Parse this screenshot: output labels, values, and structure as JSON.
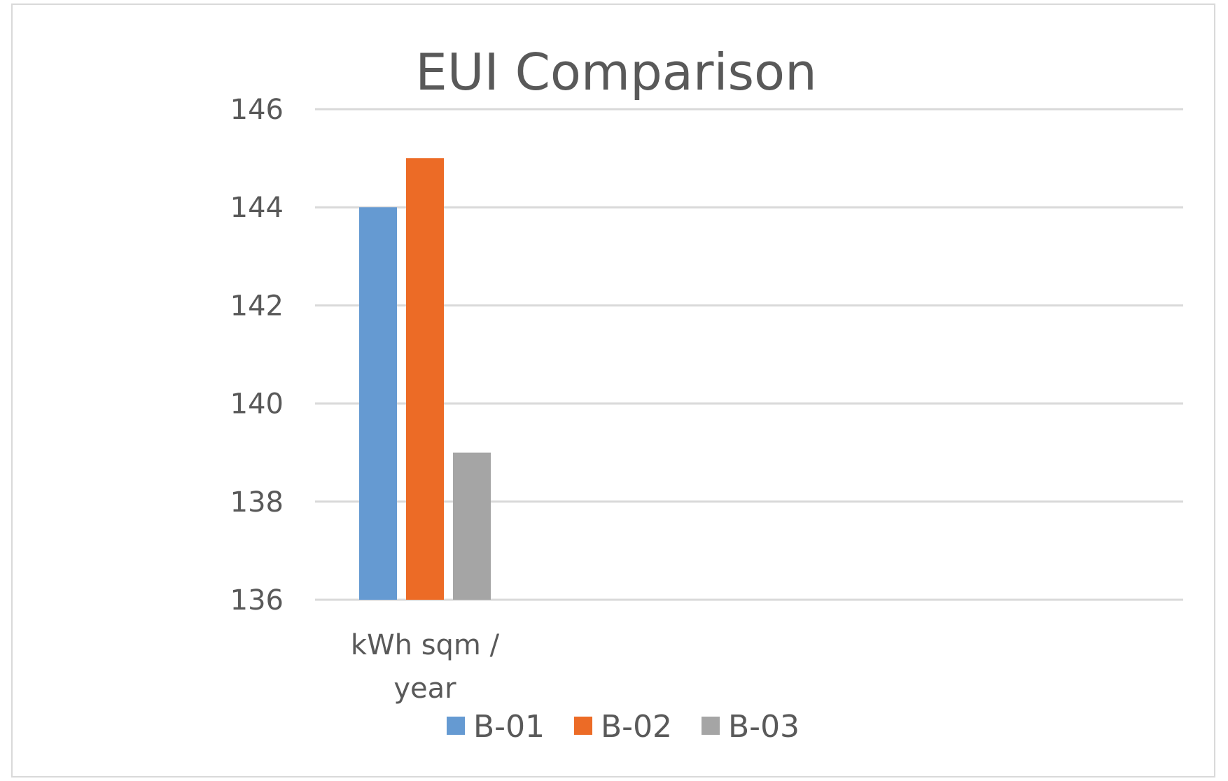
{
  "chart_data": {
    "type": "bar",
    "title": "EUI Comparison",
    "categories": [
      "kWh sqm / year"
    ],
    "category_lines": [
      [
        "kWh sqm /",
        "year"
      ]
    ],
    "series": [
      {
        "name": "B-01",
        "values": [
          144
        ],
        "color": "#659ad2"
      },
      {
        "name": "B-02",
        "values": [
          145
        ],
        "color": "#ec6b26"
      },
      {
        "name": "B-03",
        "values": [
          139
        ],
        "color": "#a5a5a5"
      }
    ],
    "xlabel": "",
    "ylabel": "",
    "ylim": [
      136,
      146
    ],
    "yticks": [
      136,
      138,
      140,
      142,
      144,
      146
    ],
    "grid": true,
    "gridline_color": "#d9d9d9",
    "legend_position": "bottom"
  }
}
